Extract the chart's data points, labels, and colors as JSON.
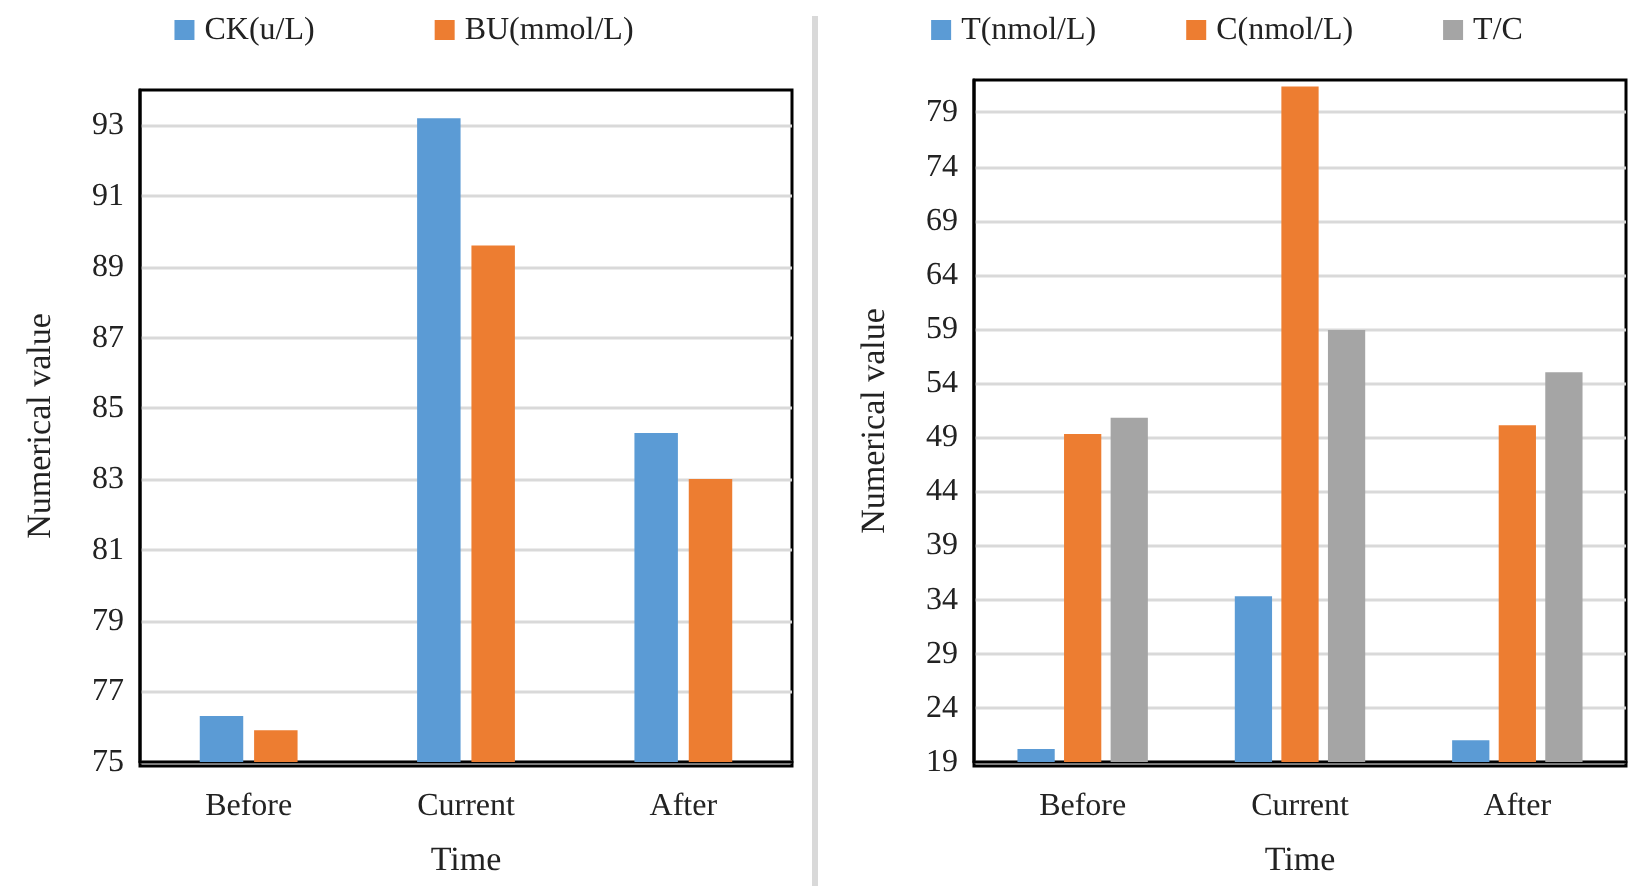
{
  "chart_data": [
    {
      "type": "bar",
      "xlabel": "Time",
      "ylabel": "Numerical value",
      "categories": [
        "Before",
        "Current",
        "After"
      ],
      "series": [
        {
          "name": "CK(u/L)",
          "color": "#5b9bd5",
          "values": [
            76.3,
            93.2,
            84.3
          ]
        },
        {
          "name": "BU(mmol/L)",
          "color": "#ed7d31",
          "values": [
            75.9,
            89.6,
            83.0
          ]
        }
      ],
      "ylim": [
        75,
        94
      ],
      "yticks": [
        75,
        77,
        79,
        81,
        83,
        85,
        87,
        89,
        91,
        93
      ],
      "grid": "y",
      "legend": "top"
    },
    {
      "type": "bar",
      "xlabel": "Time",
      "ylabel": "Numerical value",
      "categories": [
        "Before",
        "Current",
        "After"
      ],
      "series": [
        {
          "name": "T(nmol/L)",
          "color": "#5b9bd5",
          "values": [
            20.2,
            34.3,
            21.0
          ]
        },
        {
          "name": "C(nmol/L)",
          "color": "#ed7d31",
          "values": [
            49.3,
            81.4,
            50.1
          ]
        },
        {
          "name": "T/C",
          "color": "#a5a5a5",
          "values": [
            50.8,
            58.9,
            55.0
          ]
        }
      ],
      "ylim": [
        19,
        82
      ],
      "yticks": [
        19,
        24,
        29,
        34,
        39,
        44,
        49,
        54,
        59,
        64,
        69,
        74,
        79
      ],
      "grid": "y",
      "legend": "top"
    }
  ]
}
